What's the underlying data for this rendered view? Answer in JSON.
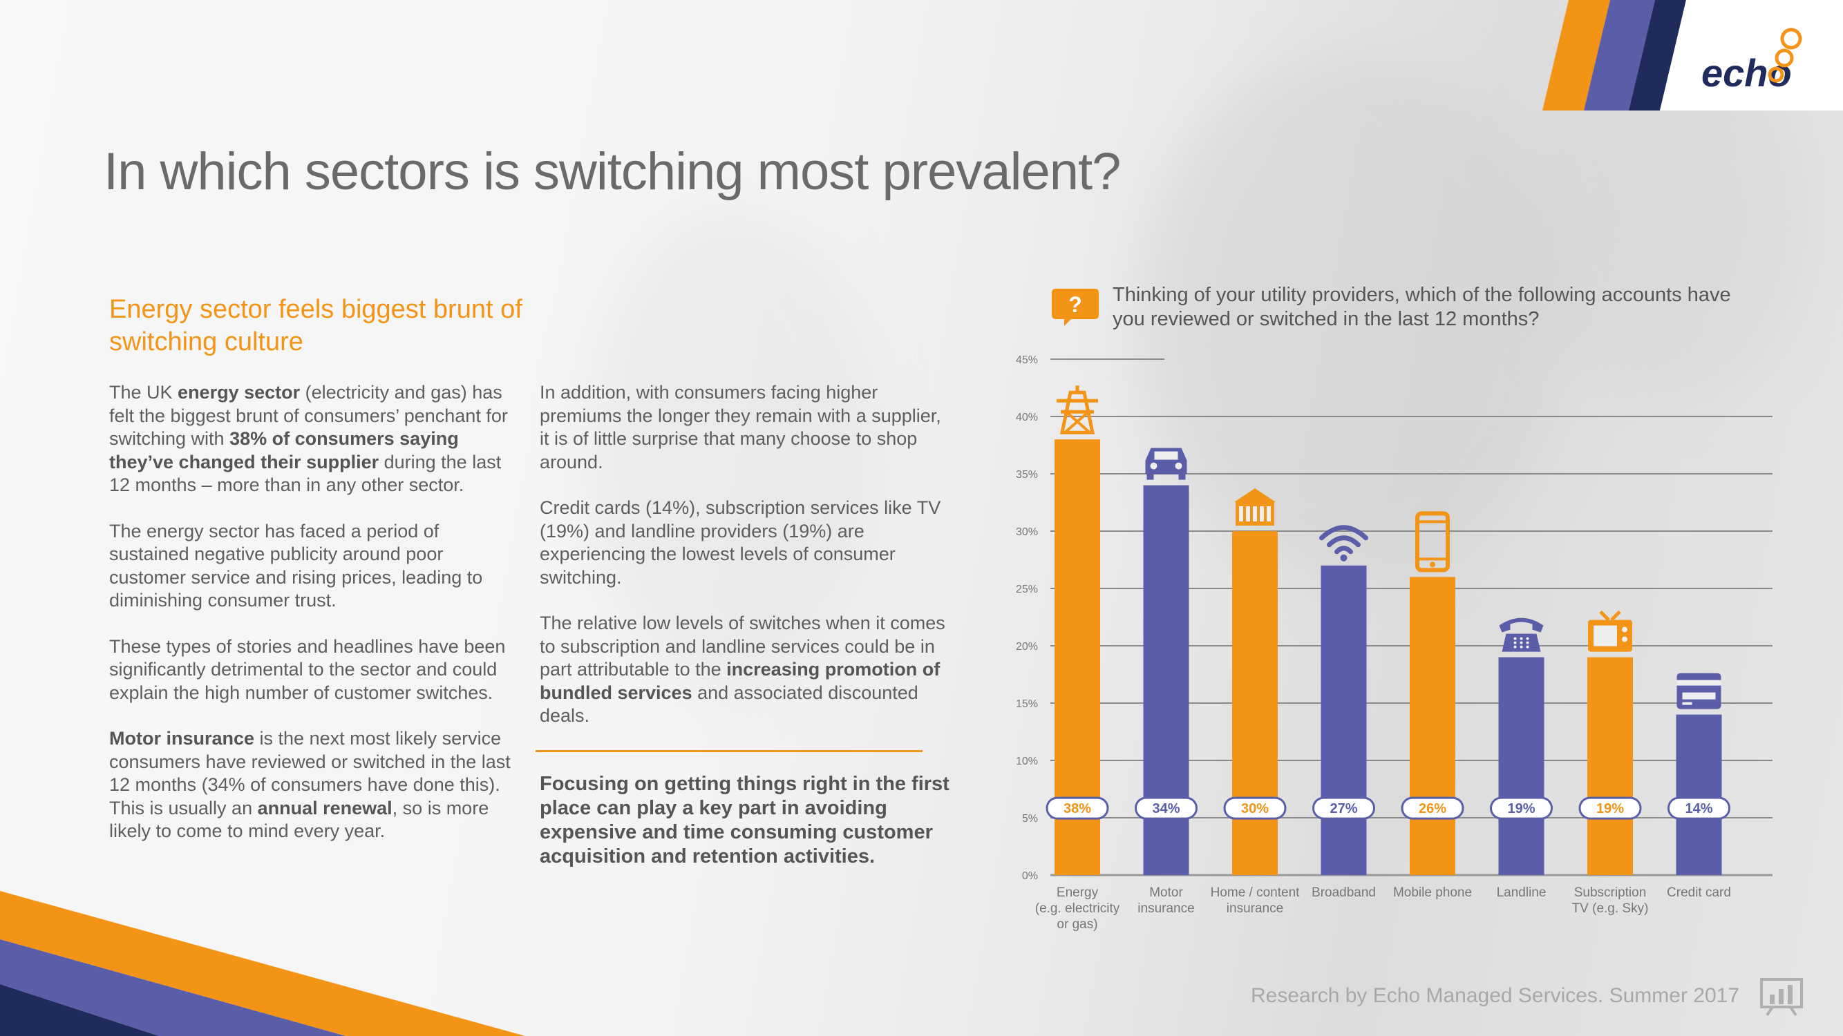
{
  "brand": {
    "logo_text": "echo",
    "colors": {
      "orange": "#f39416",
      "purple": "#5a5ea9",
      "navy": "#1f2b5b"
    }
  },
  "title": "In which sectors is switching most prevalent?",
  "subtitle": "Energy sector feels biggest brunt of switching culture",
  "column1": {
    "p1": {
      "t1": "The UK ",
      "b1": "energy sector",
      "t2": " (electricity and gas) has felt the biggest brunt of consumers’ penchant for switching with ",
      "b2": "38% of consumers saying they’ve changed their supplier",
      "t3": " during the last 12 months – more than in any other sector."
    },
    "p2": "The energy sector has faced a period of sustained negative publicity around poor customer service and rising prices, leading to diminishing consumer trust.",
    "p3": "These types of stories and headlines have been significantly detrimental to the sector and could explain the high number of customer switches.",
    "p4": {
      "b1": "Motor insurance",
      "t1": " is the next most likely service consumers have reviewed or switched in the last 12 months (34% of consumers have done this). This is usually an ",
      "b2": "annual renewal",
      "t2": ", so is more likely to come to mind every year."
    }
  },
  "column2": {
    "p1": "In addition, with consumers facing higher premiums the longer they remain with a supplier, it is of little surprise that many choose to shop around.",
    "p2": "Credit cards (14%), subscription services like TV (19%) and landline providers (19%) are experiencing the lowest levels of consumer switching.",
    "p3": {
      "t1": "The relative low levels of switches when it comes to subscription and landline services could be in part attributable to the ",
      "b1": "increasing promotion of bundled services",
      "t2": " and associated discounted deals."
    }
  },
  "callout": "Focusing on getting things right in the first place can play a key part in avoiding expensive and time consuming customer acquisition and retention activities.",
  "question": {
    "icon_glyph": "?",
    "text": "Thinking of your utility providers, which of the following accounts have you reviewed or switched in the last 12 months?"
  },
  "chart_data": {
    "type": "bar",
    "title": "Thinking of your utility providers, which of the following accounts have you reviewed or switched in the last 12 months?",
    "categories": [
      "Energy (e.g. electricity or gas)",
      "Motor insurance",
      "Home / content insurance",
      "Broadband",
      "Mobile phone",
      "Landline",
      "Subscription TV (e.g. Sky)",
      "Credit card"
    ],
    "category_lines": [
      [
        "Energy",
        "(e.g. electricity",
        "or gas)"
      ],
      [
        "Motor",
        "insurance"
      ],
      [
        "Home / content",
        "insurance"
      ],
      [
        "Broadband"
      ],
      [
        "Mobile phone"
      ],
      [
        "Landline"
      ],
      [
        "Subscription",
        "TV (e.g. Sky)"
      ],
      [
        "Credit card"
      ]
    ],
    "values": [
      38,
      34,
      30,
      27,
      26,
      19,
      19,
      14
    ],
    "value_labels": [
      "38%",
      "34%",
      "30%",
      "27%",
      "26%",
      "19%",
      "19%",
      "14%"
    ],
    "bar_colors": [
      "#f39416",
      "#5a5ea9",
      "#f39416",
      "#5a5ea9",
      "#f39416",
      "#5a5ea9",
      "#f39416",
      "#5a5ea9"
    ],
    "icons": [
      "pylon-icon",
      "car-icon",
      "house-icon",
      "wifi-icon",
      "mobile-phone-icon",
      "telephone-icon",
      "tv-icon",
      "credit-card-icon"
    ],
    "yticks": [
      "0%",
      "5%",
      "10%",
      "15%",
      "20%",
      "25%",
      "30%",
      "35%",
      "40%",
      "45%"
    ],
    "ylim": [
      0,
      45
    ],
    "xlabel": "",
    "ylabel": "",
    "grid": true
  },
  "footer": {
    "credit": "Research by Echo Managed Services. Summer 2017",
    "icon": "presentation-chart-icon"
  }
}
